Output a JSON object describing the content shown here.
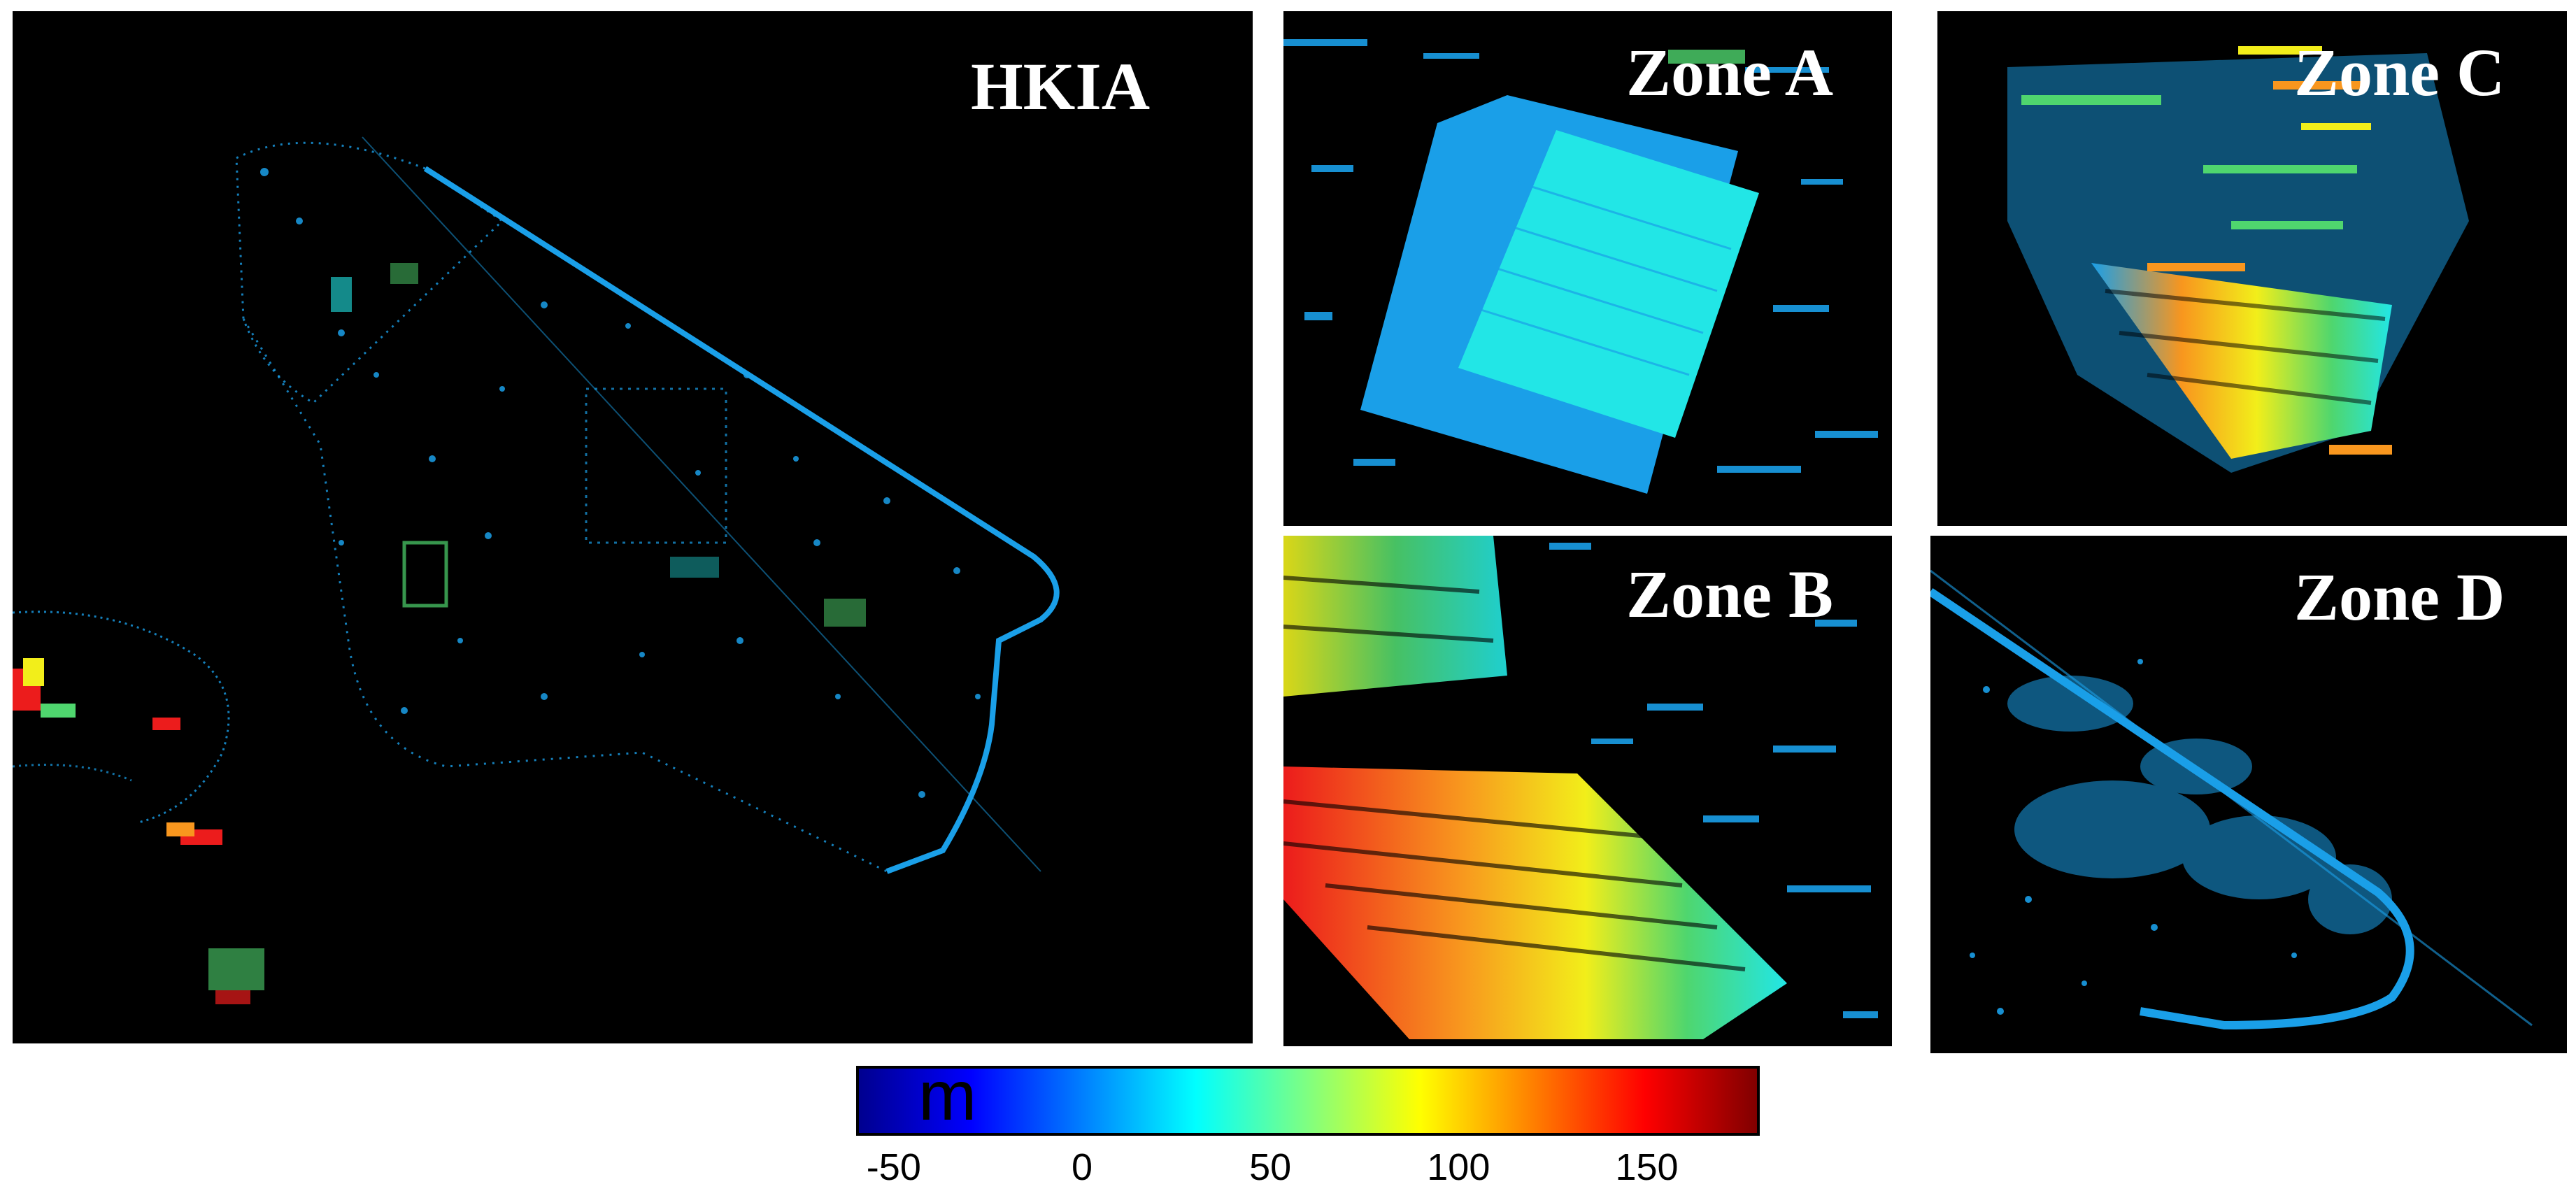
{
  "panels": {
    "hkia": "HKIA",
    "zone_a": "Zone A",
    "zone_b": "Zone B",
    "zone_c": "Zone C",
    "zone_d": "Zone D"
  },
  "colorbar": {
    "unit": "m",
    "range": [
      -60,
      180
    ],
    "ticks": [
      "-50",
      "0",
      "50",
      "100",
      "150"
    ],
    "colors": [
      "#00008f",
      "#0000ff",
      "#0080ff",
      "#00ffff",
      "#80ff80",
      "#ffff00",
      "#ff8000",
      "#ff0000",
      "#800000"
    ]
  },
  "palette": {
    "blue": "#1a9fe8",
    "cyan": "#22e6e6",
    "green": "#4fd66e",
    "yellow": "#f2ee1a",
    "orange": "#f8961e",
    "red": "#ec1c1c",
    "background": "#000000"
  }
}
